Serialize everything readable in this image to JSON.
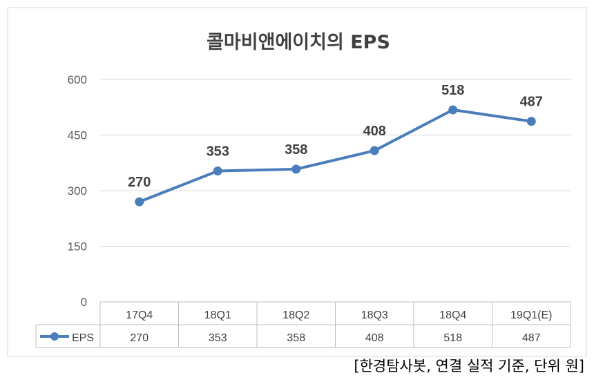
{
  "chart_data": {
    "type": "line",
    "title": "콜마비앤에이치의 EPS",
    "categories": [
      "17Q4",
      "18Q1",
      "18Q2",
      "18Q3",
      "18Q4",
      "19Q1(E)"
    ],
    "series": [
      {
        "name": "EPS",
        "values": [
          270,
          353,
          358,
          408,
          518,
          487
        ],
        "color": "#4a7ebb"
      }
    ],
    "data_labels": [
      "270",
      "353",
      "358",
      "408",
      "518",
      "487"
    ],
    "table_values": [
      "270",
      "353",
      "358",
      "408",
      "518",
      "487"
    ],
    "yticks": [
      "0",
      "150",
      "300",
      "450",
      "600"
    ],
    "ylim": [
      0,
      600
    ],
    "grid": true,
    "data_table": true
  },
  "source_note": "[한경탐사봇, 연결 실적 기준, 단위 원]"
}
